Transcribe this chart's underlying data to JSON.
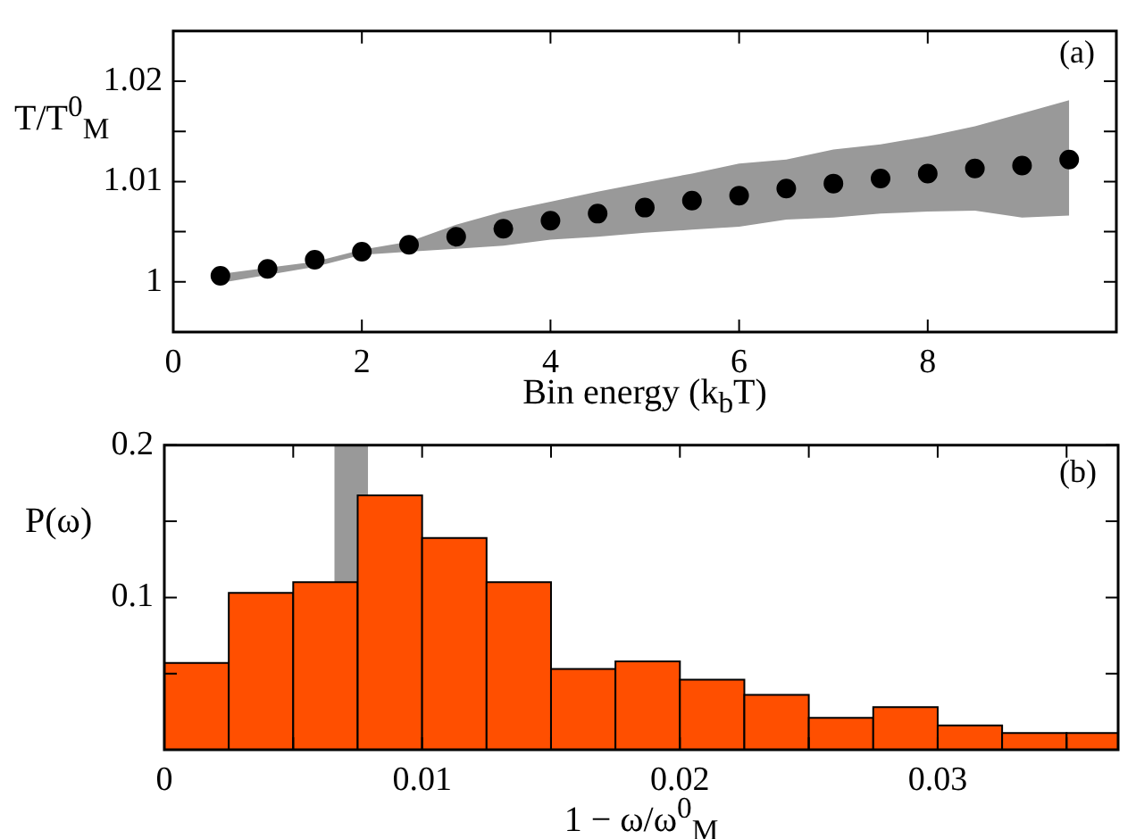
{
  "chart_data": [
    {
      "type": "scatter",
      "xlabel": "Bin energy (k$_{b}$T)",
      "ylabel": "T/T$^{0}$$_{M}$",
      "annotations": [
        "(a)"
      ],
      "x": [
        0.5,
        1,
        1.5,
        2,
        2.5,
        3,
        3.5,
        4,
        4.5,
        5,
        5.5,
        6,
        6.5,
        7,
        7.5,
        8,
        8.5,
        9,
        9.5
      ],
      "series": [
        {
          "color": "#000000",
          "values": [
            1.0006,
            1.0013,
            1.0022,
            1.003,
            1.0037,
            1.0045,
            1.0053,
            1.0061,
            1.0068,
            1.0074,
            1.0081,
            1.0086,
            1.0093,
            1.0098,
            1.0103,
            1.0108,
            1.0113,
            1.0116,
            1.0122
          ],
          "lower": [
            0.9999,
            1.0007,
            1.0015,
            1.0027,
            1.003,
            1.0033,
            1.0036,
            1.0042,
            1.0045,
            1.0049,
            1.0052,
            1.0055,
            1.0062,
            1.0064,
            1.0068,
            1.007,
            1.0071,
            1.0064,
            1.0066
          ],
          "upper": [
            1.0008,
            1.0014,
            1.002,
            1.0032,
            1.004,
            1.0057,
            1.007,
            1.008,
            1.009,
            1.0099,
            1.0108,
            1.0118,
            1.0122,
            1.0132,
            1.0137,
            1.0145,
            1.0155,
            1.0168,
            1.0181
          ]
        }
      ],
      "xlim": [
        0,
        10
      ],
      "ylim": [
        0.995,
        1.025
      ],
      "xticks": [
        0,
        2,
        4,
        6,
        8
      ],
      "yticks": [
        1,
        {
          "value": 1.005,
          "label": null
        },
        1.01,
        {
          "value": 1.015,
          "label": null
        },
        1.02
      ],
      "marker": "circle",
      "grid": false,
      "legend": false
    },
    {
      "type": "histogram",
      "xlabel": "1 − ω/ω$^{0}$$_{M}$",
      "ylabel": "P(ω)",
      "annotations": [
        "(b)"
      ],
      "bins": [
        0,
        0.0025,
        0.005,
        0.0075,
        0.01,
        0.0125,
        0.015,
        0.0175,
        0.02,
        0.0225,
        0.025,
        0.0275,
        0.03,
        0.0325,
        0.035,
        0.037
      ],
      "values": [
        0.057,
        0.103,
        0.11,
        0.167,
        0.139,
        0.11,
        0.053,
        0.058,
        0.046,
        0.036,
        0.021,
        0.028,
        0.016,
        0.011,
        0.011
      ],
      "color": "#ff4f00",
      "bands": [
        {
          "axis": "x",
          "from": 0.0066,
          "to": 0.0079,
          "color": "#999999"
        }
      ],
      "xlim": [
        0,
        0.037
      ],
      "ylim": [
        0,
        0.2
      ],
      "xticks": [
        0,
        {
          "value": 0.005,
          "label": null
        },
        0.01,
        {
          "value": 0.015,
          "label": null
        },
        0.02,
        {
          "value": 0.025,
          "label": null
        },
        0.03,
        {
          "value": 0.035,
          "label": null
        }
      ],
      "yticks": [
        {
          "value": 0,
          "label": null
        },
        {
          "value": 0.05,
          "label": null
        },
        0.1,
        {
          "value": 0.15,
          "label": null
        },
        0.2
      ],
      "grid": false,
      "legend": false
    }
  ]
}
